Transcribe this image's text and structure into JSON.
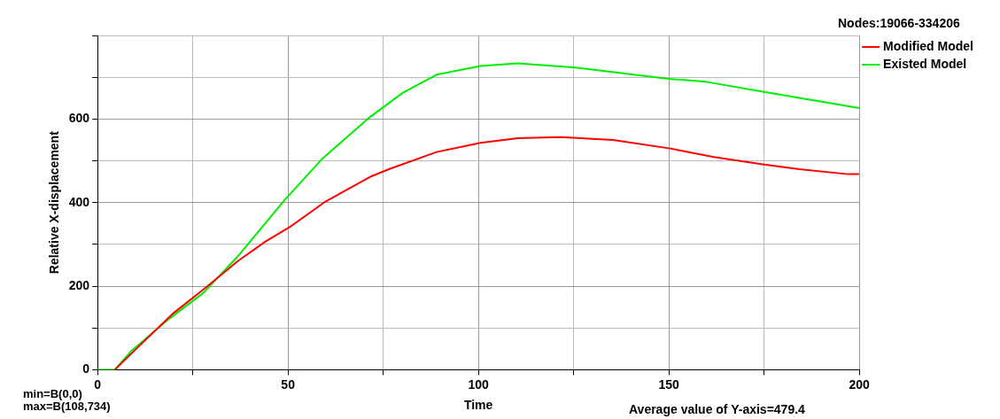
{
  "chart_data": {
    "type": "line",
    "xlabel": "Time",
    "ylabel": "Relative X-displacement",
    "xlim": [
      0,
      200
    ],
    "xticks": [
      0,
      {
        "value": 25,
        "label": null
      },
      50,
      {
        "value": 75,
        "label": null
      },
      100,
      {
        "value": 125,
        "label": null
      },
      150,
      {
        "value": 175,
        "label": null
      },
      200
    ],
    "ylim": [
      0,
      800
    ],
    "yticks": [
      0,
      {
        "value": 100,
        "label": null
      },
      200,
      {
        "value": 300,
        "label": null
      },
      400,
      {
        "value": 500,
        "label": null
      },
      600,
      {
        "value": 700,
        "label": null
      },
      {
        "value": 800,
        "label": null
      }
    ],
    "grid": true,
    "legend": "top right",
    "line_style": "solid",
    "marker": "none",
    "annotations": [
      "Nodes:19066-334206",
      "min=B(0,0)",
      "max=B(108,734)",
      "Average value of Y-axis=479.4"
    ],
    "series": [
      {
        "name": "Modified Model",
        "color": "#ff0000",
        "x": [
          4.5,
          11.4,
          19.6,
          28.6,
          36.8,
          44.1,
          50.7,
          59.6,
          71.9,
          76.8,
          89,
          100.5,
          110.3,
          121.6,
          135.3,
          150,
          161.8,
          175,
          184.3,
          197,
          200
        ],
        "values": [
          0,
          61,
          133,
          198,
          260,
          307,
          343,
          401,
          463,
          481,
          521,
          543,
          554,
          557,
          550,
          530,
          509,
          491,
          480,
          468,
          468
        ]
      },
      {
        "name": "Existed Model",
        "color": "#00ee00",
        "x": [
          0,
          4.5,
          9,
          18.8,
          27.8,
          36.8,
          49,
          58.8,
          71,
          80,
          89,
          100.5,
          110.3,
          125.5,
          150,
          159.8,
          175,
          200
        ],
        "values": [
          0,
          0,
          46,
          122,
          184,
          271,
          405,
          503,
          601,
          662,
          706,
          727,
          733,
          723,
          696,
          689,
          665,
          626
        ]
      }
    ]
  }
}
